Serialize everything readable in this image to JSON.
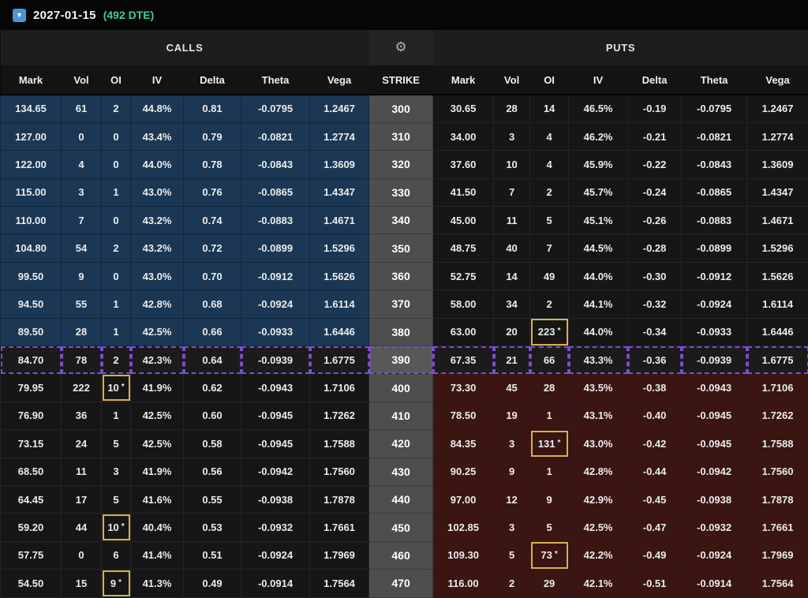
{
  "header": {
    "expiry": "2027-01-15",
    "dte": "(492 DTE)"
  },
  "icons": {
    "collapse": "▼",
    "gear": "⚙",
    "flag_star": "*"
  },
  "table": {
    "calls_label": "CALLS",
    "puts_label": "PUTS",
    "strike_label": "STRIKE",
    "columns": [
      "Mark",
      "Vol",
      "OI",
      "IV",
      "Delta",
      "Theta",
      "Vega"
    ],
    "rows": [
      {
        "strike": "300",
        "call": [
          "134.65",
          "61",
          "2",
          "44.8%",
          "0.81",
          "-0.0795",
          "1.2467"
        ],
        "put": [
          "30.65",
          "28",
          "14",
          "46.5%",
          "-0.19",
          "-0.0795",
          "1.2467"
        ]
      },
      {
        "strike": "310",
        "call": [
          "127.00",
          "0",
          "0",
          "43.4%",
          "0.79",
          "-0.0821",
          "1.2774"
        ],
        "put": [
          "34.00",
          "3",
          "4",
          "46.2%",
          "-0.21",
          "-0.0821",
          "1.2774"
        ]
      },
      {
        "strike": "320",
        "call": [
          "122.00",
          "4",
          "0",
          "44.0%",
          "0.78",
          "-0.0843",
          "1.3609"
        ],
        "put": [
          "37.60",
          "10",
          "4",
          "45.9%",
          "-0.22",
          "-0.0843",
          "1.3609"
        ]
      },
      {
        "strike": "330",
        "call": [
          "115.00",
          "3",
          "1",
          "43.0%",
          "0.76",
          "-0.0865",
          "1.4347"
        ],
        "put": [
          "41.50",
          "7",
          "2",
          "45.7%",
          "-0.24",
          "-0.0865",
          "1.4347"
        ]
      },
      {
        "strike": "340",
        "call": [
          "110.00",
          "7",
          "0",
          "43.2%",
          "0.74",
          "-0.0883",
          "1.4671"
        ],
        "put": [
          "45.00",
          "11",
          "5",
          "45.1%",
          "-0.26",
          "-0.0883",
          "1.4671"
        ]
      },
      {
        "strike": "350",
        "call": [
          "104.80",
          "54",
          "2",
          "43.2%",
          "0.72",
          "-0.0899",
          "1.5296"
        ],
        "put": [
          "48.75",
          "40",
          "7",
          "44.5%",
          "-0.28",
          "-0.0899",
          "1.5296"
        ]
      },
      {
        "strike": "360",
        "call": [
          "99.50",
          "9",
          "0",
          "43.0%",
          "0.70",
          "-0.0912",
          "1.5626"
        ],
        "put": [
          "52.75",
          "14",
          "49",
          "44.0%",
          "-0.30",
          "-0.0912",
          "1.5626"
        ]
      },
      {
        "strike": "370",
        "call": [
          "94.50",
          "55",
          "1",
          "42.8%",
          "0.68",
          "-0.0924",
          "1.6114"
        ],
        "put": [
          "58.00",
          "34",
          "2",
          "44.1%",
          "-0.32",
          "-0.0924",
          "1.6114"
        ]
      },
      {
        "strike": "380",
        "call": [
          "89.50",
          "28",
          "1",
          "42.5%",
          "0.66",
          "-0.0933",
          "1.6446"
        ],
        "put": [
          "63.00",
          "20",
          "223",
          "44.0%",
          "-0.34",
          "-0.0933",
          "1.6446"
        ],
        "put_oi_flag": true
      },
      {
        "strike": "390",
        "atm": true,
        "call": [
          "84.70",
          "78",
          "2",
          "42.3%",
          "0.64",
          "-0.0939",
          "1.6775"
        ],
        "put": [
          "67.35",
          "21",
          "66",
          "43.3%",
          "-0.36",
          "-0.0939",
          "1.6775"
        ]
      },
      {
        "strike": "400",
        "call": [
          "79.95",
          "222",
          "10",
          "41.9%",
          "0.62",
          "-0.0943",
          "1.7106"
        ],
        "call_oi_flag": true,
        "put": [
          "73.30",
          "45",
          "28",
          "43.5%",
          "-0.38",
          "-0.0943",
          "1.7106"
        ]
      },
      {
        "strike": "410",
        "call": [
          "76.90",
          "36",
          "1",
          "42.5%",
          "0.60",
          "-0.0945",
          "1.7262"
        ],
        "put": [
          "78.50",
          "19",
          "1",
          "43.1%",
          "-0.40",
          "-0.0945",
          "1.7262"
        ]
      },
      {
        "strike": "420",
        "call": [
          "73.15",
          "24",
          "5",
          "42.5%",
          "0.58",
          "-0.0945",
          "1.7588"
        ],
        "put": [
          "84.35",
          "3",
          "131",
          "43.0%",
          "-0.42",
          "-0.0945",
          "1.7588"
        ],
        "put_oi_flag": true
      },
      {
        "strike": "430",
        "call": [
          "68.50",
          "11",
          "3",
          "41.9%",
          "0.56",
          "-0.0942",
          "1.7560"
        ],
        "put": [
          "90.25",
          "9",
          "1",
          "42.8%",
          "-0.44",
          "-0.0942",
          "1.7560"
        ]
      },
      {
        "strike": "440",
        "call": [
          "64.45",
          "17",
          "5",
          "41.6%",
          "0.55",
          "-0.0938",
          "1.7878"
        ],
        "put": [
          "97.00",
          "12",
          "9",
          "42.9%",
          "-0.45",
          "-0.0938",
          "1.7878"
        ]
      },
      {
        "strike": "450",
        "call": [
          "59.20",
          "44",
          "10",
          "40.4%",
          "0.53",
          "-0.0932",
          "1.7661"
        ],
        "call_oi_flag": true,
        "put": [
          "102.85",
          "3",
          "5",
          "42.5%",
          "-0.47",
          "-0.0932",
          "1.7661"
        ]
      },
      {
        "strike": "460",
        "call": [
          "57.75",
          "0",
          "6",
          "41.4%",
          "0.51",
          "-0.0924",
          "1.7969"
        ],
        "put": [
          "109.30",
          "5",
          "73",
          "42.2%",
          "-0.49",
          "-0.0924",
          "1.7969"
        ],
        "put_oi_flag": true
      },
      {
        "strike": "470",
        "call": [
          "54.50",
          "15",
          "9",
          "41.3%",
          "0.49",
          "-0.0914",
          "1.7564"
        ],
        "call_oi_flag": true,
        "put": [
          "116.00",
          "2",
          "29",
          "42.1%",
          "-0.51",
          "-0.0914",
          "1.7564"
        ]
      }
    ]
  },
  "colors": {
    "call_itm_bg": "#1b3754",
    "put_itm_bg": "#3a1512",
    "strike_bg": "#4e4e4e",
    "atm_border": "#7c4dce",
    "flag_border": "#d9b245",
    "dte_green": "#3ecf8e",
    "toggle_blue": "#4a96d6"
  }
}
